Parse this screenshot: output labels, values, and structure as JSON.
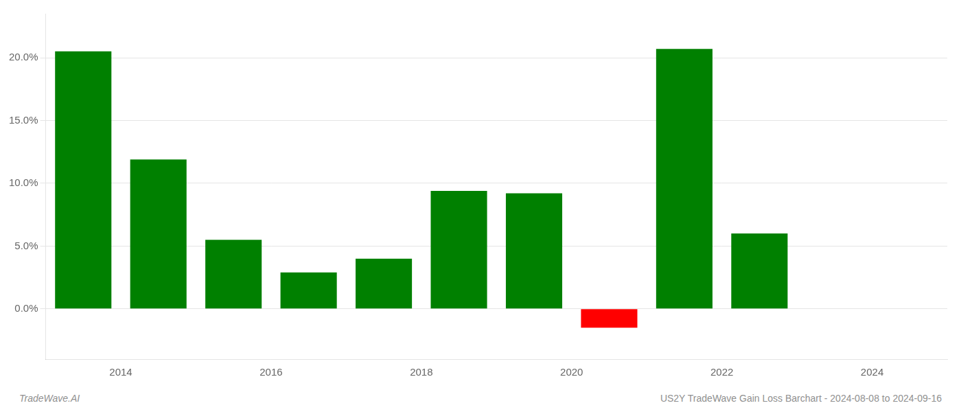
{
  "chart_data": {
    "type": "bar",
    "x": [
      2013.5,
      2014.5,
      2015.5,
      2016.5,
      2017.5,
      2018.5,
      2019.5,
      2020.5,
      2021.5,
      2022.5
    ],
    "values": [
      0.205,
      0.119,
      0.055,
      0.029,
      0.04,
      0.094,
      0.092,
      -0.015,
      0.207,
      0.06
    ],
    "colors": [
      "#008000",
      "#008000",
      "#008000",
      "#008000",
      "#008000",
      "#008000",
      "#008000",
      "#ff0000",
      "#008000",
      "#008000"
    ],
    "xlim": [
      2013,
      2025
    ],
    "xticks": [
      2014,
      2016,
      2018,
      2020,
      2022,
      2024
    ],
    "ylim": [
      -0.04,
      0.235
    ],
    "yticks": [
      {
        "value": 0.0,
        "label": "0.0%"
      },
      {
        "value": 0.05,
        "label": "5.0%"
      },
      {
        "value": 0.1,
        "label": "10.0%"
      },
      {
        "value": 0.15,
        "label": "15.0%"
      },
      {
        "value": 0.2,
        "label": "20.0%"
      }
    ],
    "grid": true,
    "annotations": [
      "TradeWave.AI",
      "US2Y TradeWave Gain Loss Barchart - 2024-08-08 to 2024-09-16"
    ]
  }
}
